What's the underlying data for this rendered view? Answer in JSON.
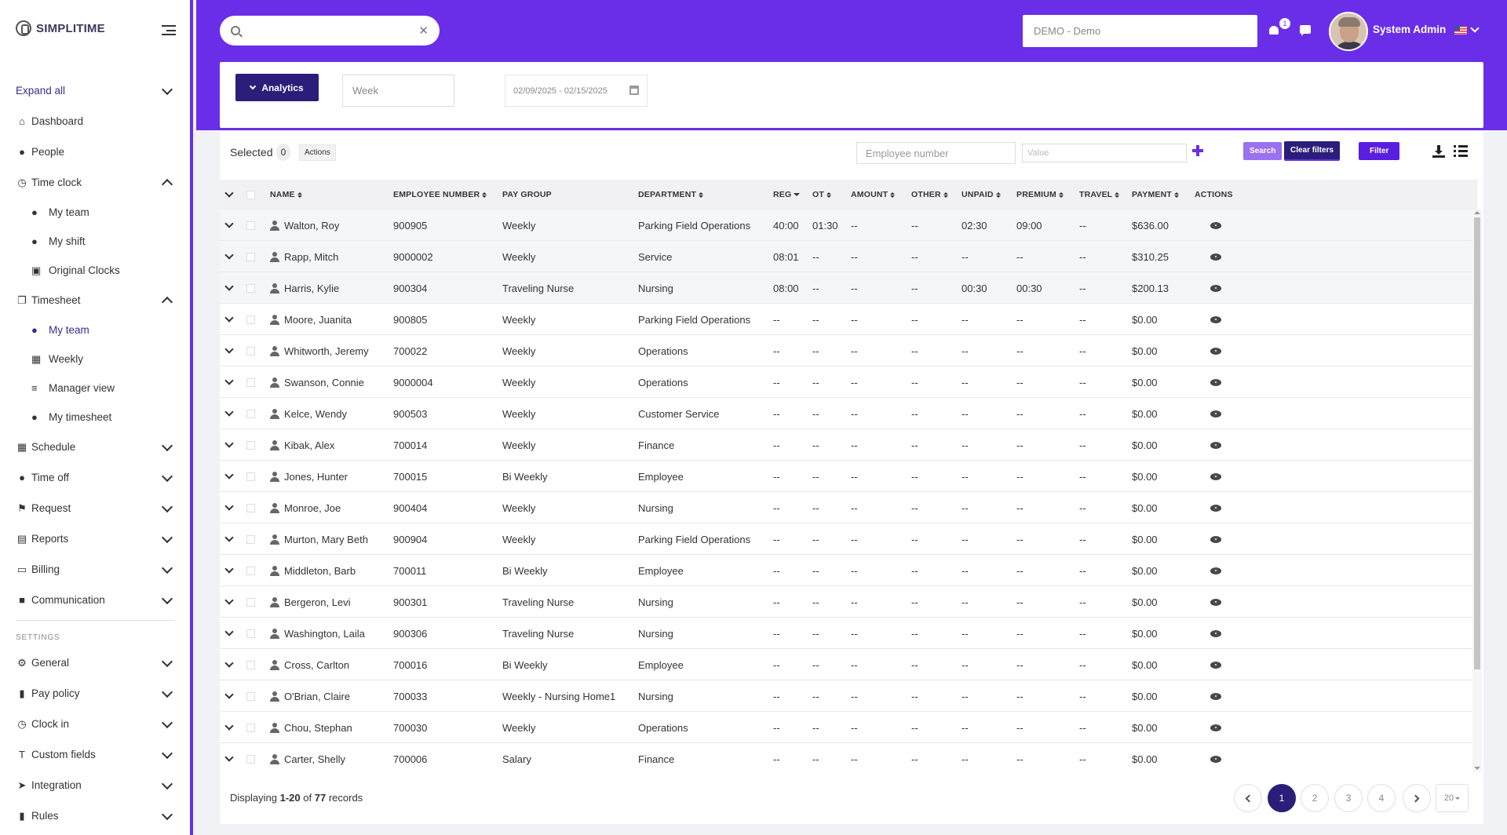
{
  "app": {
    "logo_text": "SIMPLITIME"
  },
  "sidebar": {
    "expand_all": "Expand all",
    "items": [
      {
        "label": "Dashboard",
        "icon": "home-icon"
      },
      {
        "label": "People",
        "icon": "user-icon"
      },
      {
        "label": "Time clock",
        "icon": "clock-icon",
        "expanded": true,
        "children": [
          {
            "label": "My team",
            "icon": "users-icon"
          },
          {
            "label": "My shift",
            "icon": "user-clock-icon"
          },
          {
            "label": "Original Clocks",
            "icon": "briefcase-icon"
          }
        ]
      },
      {
        "label": "Timesheet",
        "icon": "copy-icon",
        "expanded": true,
        "children": [
          {
            "label": "My team",
            "icon": "users-icon",
            "active": true
          },
          {
            "label": "Weekly",
            "icon": "calendar-icon"
          },
          {
            "label": "Manager view",
            "icon": "sliders-icon"
          },
          {
            "label": "My timesheet",
            "icon": "user-clock-icon"
          }
        ]
      },
      {
        "label": "Schedule",
        "icon": "calendar-icon"
      },
      {
        "label": "Time off",
        "icon": "stopwatch-icon"
      },
      {
        "label": "Request",
        "icon": "flag-icon"
      },
      {
        "label": "Reports",
        "icon": "table-icon"
      },
      {
        "label": "Billing",
        "icon": "money-icon"
      },
      {
        "label": "Communication",
        "icon": "comment-icon"
      }
    ],
    "settings_label": "SETTINGS",
    "settings_items": [
      {
        "label": "General",
        "icon": "gears-icon"
      },
      {
        "label": "Pay policy",
        "icon": "book-icon"
      },
      {
        "label": "Clock in",
        "icon": "clock-icon"
      },
      {
        "label": "Custom fields",
        "icon": "text-height-icon"
      },
      {
        "label": "Integration",
        "icon": "location-arrow-icon"
      },
      {
        "label": "Rules",
        "icon": "book-icon"
      }
    ]
  },
  "header": {
    "search": {
      "value": "",
      "placeholder": ""
    },
    "company": "DEMO - Demo",
    "notification_count": "1",
    "user_name": "System Admin"
  },
  "filters": {
    "analytics_label": "Analytics",
    "period": "Week",
    "date_range": "02/09/2025 - 02/15/2025"
  },
  "toolbar": {
    "selected_label": "Selected",
    "selected_count": "0",
    "actions_label": "Actions",
    "employee_number_placeholder": "Employee number",
    "value_placeholder": "Value",
    "search_label": "Search",
    "clear_filters_label": "Clear filters",
    "filter_label": "Filter"
  },
  "table": {
    "columns": [
      "NAME",
      "EMPLOYEE NUMBER",
      "PAY GROUP",
      "DEPARTMENT",
      "REG",
      "OT",
      "AMOUNT",
      "OTHER",
      "UNPAID",
      "PREMIUM",
      "TRAVEL",
      "PAYMENT",
      "ACTIONS"
    ],
    "rows": [
      {
        "name": "Walton, Roy",
        "emp": "900905",
        "group": "Weekly",
        "dept": "Parking Field Operations",
        "reg": "40:00",
        "ot": "01:30",
        "amount": "--",
        "other": "--",
        "unpaid": "02:30",
        "premium": "09:00",
        "travel": "--",
        "payment": "$636.00"
      },
      {
        "name": "Rapp, Mitch",
        "emp": "9000002",
        "group": "Weekly",
        "dept": "Service",
        "reg": "08:01",
        "ot": "--",
        "amount": "--",
        "other": "--",
        "unpaid": "--",
        "premium": "--",
        "travel": "--",
        "payment": "$310.25"
      },
      {
        "name": "Harris, Kylie",
        "emp": "900304",
        "group": "Traveling Nurse",
        "dept": "Nursing",
        "reg": "08:00",
        "ot": "--",
        "amount": "--",
        "other": "--",
        "unpaid": "00:30",
        "premium": "00:30",
        "travel": "--",
        "payment": "$200.13"
      },
      {
        "name": "Moore, Juanita",
        "emp": "900805",
        "group": "Weekly",
        "dept": "Parking Field Operations",
        "reg": "--",
        "ot": "--",
        "amount": "--",
        "other": "--",
        "unpaid": "--",
        "premium": "--",
        "travel": "--",
        "payment": "$0.00"
      },
      {
        "name": "Whitworth, Jeremy",
        "emp": "700022",
        "group": "Weekly",
        "dept": "Operations",
        "reg": "--",
        "ot": "--",
        "amount": "--",
        "other": "--",
        "unpaid": "--",
        "premium": "--",
        "travel": "--",
        "payment": "$0.00"
      },
      {
        "name": "Swanson, Connie",
        "emp": "9000004",
        "group": "Weekly",
        "dept": "Operations",
        "reg": "--",
        "ot": "--",
        "amount": "--",
        "other": "--",
        "unpaid": "--",
        "premium": "--",
        "travel": "--",
        "payment": "$0.00"
      },
      {
        "name": "Kelce, Wendy",
        "emp": "900503",
        "group": "Weekly",
        "dept": "Customer Service",
        "reg": "--",
        "ot": "--",
        "amount": "--",
        "other": "--",
        "unpaid": "--",
        "premium": "--",
        "travel": "--",
        "payment": "$0.00"
      },
      {
        "name": "Kibak, Alex",
        "emp": "700014",
        "group": "Weekly",
        "dept": "Finance",
        "reg": "--",
        "ot": "--",
        "amount": "--",
        "other": "--",
        "unpaid": "--",
        "premium": "--",
        "travel": "--",
        "payment": "$0.00"
      },
      {
        "name": "Jones, Hunter",
        "emp": "700015",
        "group": "Bi Weekly",
        "dept": "Employee",
        "reg": "--",
        "ot": "--",
        "amount": "--",
        "other": "--",
        "unpaid": "--",
        "premium": "--",
        "travel": "--",
        "payment": "$0.00"
      },
      {
        "name": "Monroe, Joe",
        "emp": "900404",
        "group": "Weekly",
        "dept": "Nursing",
        "reg": "--",
        "ot": "--",
        "amount": "--",
        "other": "--",
        "unpaid": "--",
        "premium": "--",
        "travel": "--",
        "payment": "$0.00"
      },
      {
        "name": "Murton, Mary Beth",
        "emp": "900904",
        "group": "Weekly",
        "dept": "Parking Field Operations",
        "reg": "--",
        "ot": "--",
        "amount": "--",
        "other": "--",
        "unpaid": "--",
        "premium": "--",
        "travel": "--",
        "payment": "$0.00"
      },
      {
        "name": "Middleton, Barb",
        "emp": "700011",
        "group": "Bi Weekly",
        "dept": "Employee",
        "reg": "--",
        "ot": "--",
        "amount": "--",
        "other": "--",
        "unpaid": "--",
        "premium": "--",
        "travel": "--",
        "payment": "$0.00"
      },
      {
        "name": "Bergeron, Levi",
        "emp": "900301",
        "group": "Traveling Nurse",
        "dept": "Nursing",
        "reg": "--",
        "ot": "--",
        "amount": "--",
        "other": "--",
        "unpaid": "--",
        "premium": "--",
        "travel": "--",
        "payment": "$0.00"
      },
      {
        "name": "Washington, Laila",
        "emp": "900306",
        "group": "Traveling Nurse",
        "dept": "Nursing",
        "reg": "--",
        "ot": "--",
        "amount": "--",
        "other": "--",
        "unpaid": "--",
        "premium": "--",
        "travel": "--",
        "payment": "$0.00"
      },
      {
        "name": "Cross, Carlton",
        "emp": "700016",
        "group": "Bi Weekly",
        "dept": "Employee",
        "reg": "--",
        "ot": "--",
        "amount": "--",
        "other": "--",
        "unpaid": "--",
        "premium": "--",
        "travel": "--",
        "payment": "$0.00"
      },
      {
        "name": "O'Brian, Claire",
        "emp": "700033",
        "group": "Weekly - Nursing Home1",
        "dept": "Nursing",
        "reg": "--",
        "ot": "--",
        "amount": "--",
        "other": "--",
        "unpaid": "--",
        "premium": "--",
        "travel": "--",
        "payment": "$0.00"
      },
      {
        "name": "Chou, Stephan",
        "emp": "700030",
        "group": "Weekly",
        "dept": "Operations",
        "reg": "--",
        "ot": "--",
        "amount": "--",
        "other": "--",
        "unpaid": "--",
        "premium": "--",
        "travel": "--",
        "payment": "$0.00"
      },
      {
        "name": "Carter, Shelly",
        "emp": "700006",
        "group": "Salary",
        "dept": "Finance",
        "reg": "--",
        "ot": "--",
        "amount": "--",
        "other": "--",
        "unpaid": "--",
        "premium": "--",
        "travel": "--",
        "payment": "$0.00"
      }
    ]
  },
  "footer": {
    "displaying": "Displaying",
    "range": "1-20",
    "of": "of",
    "total": "77",
    "records": "records",
    "pages": [
      "1",
      "2",
      "3",
      "4"
    ],
    "current_page": "1",
    "page_size": "20"
  },
  "colors": {
    "brand": "#6a2ee8",
    "primary_dark": "#2a1e7a"
  }
}
